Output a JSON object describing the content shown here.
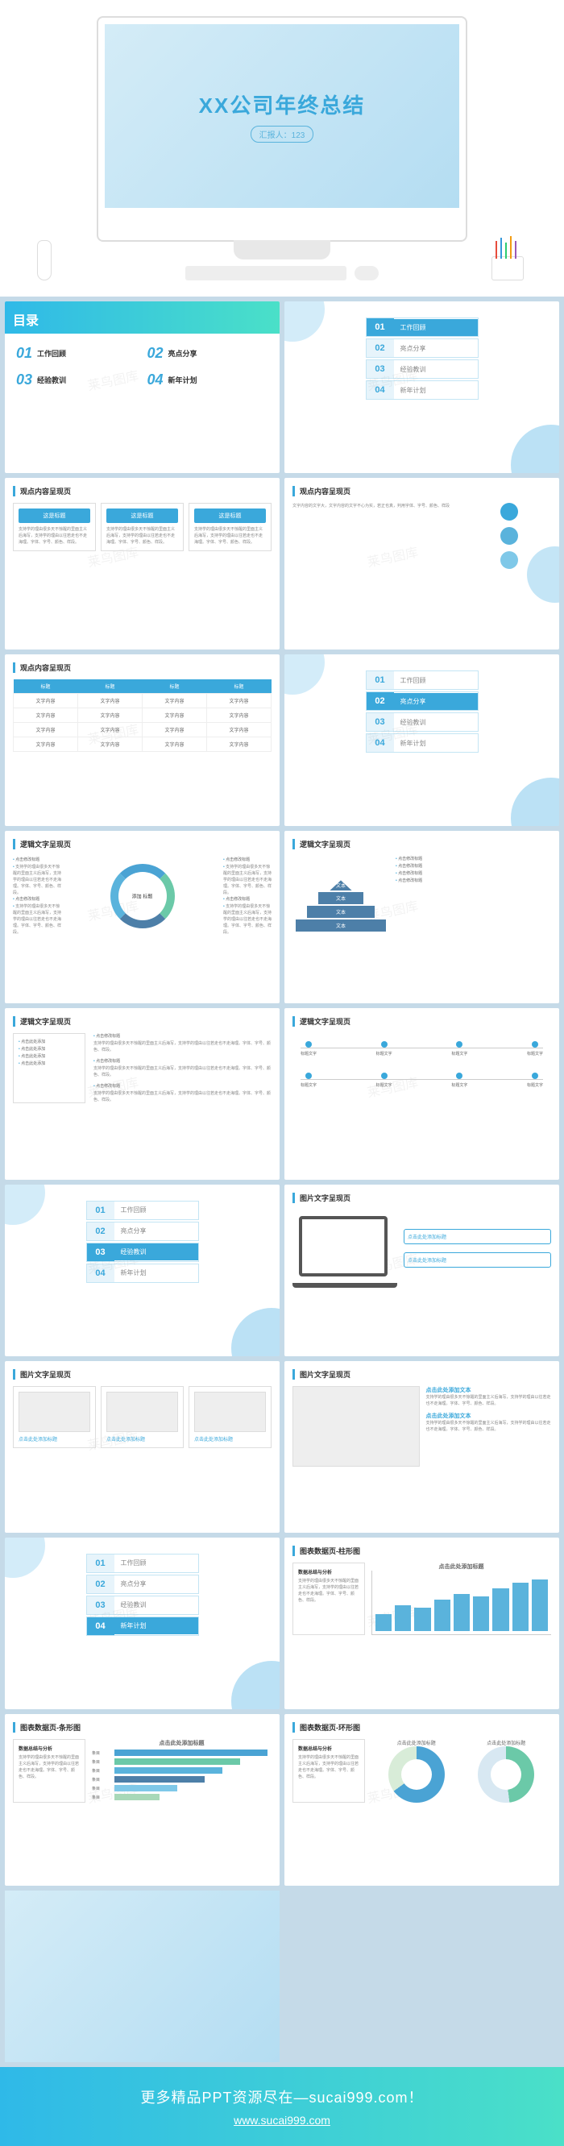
{
  "hero": {
    "title": "XX公司年终总结",
    "subtitle": "汇报人：123"
  },
  "watermark": "莱鸟图库",
  "toc": {
    "title": "目录",
    "items": [
      {
        "num": "01",
        "label": "工作回顾"
      },
      {
        "num": "02",
        "label": "亮点分享"
      },
      {
        "num": "03",
        "label": "经验教训"
      },
      {
        "num": "04",
        "label": "新年计划"
      }
    ]
  },
  "nav": [
    {
      "num": "01",
      "label": "工作回顾"
    },
    {
      "num": "02",
      "label": "亮点分享"
    },
    {
      "num": "03",
      "label": "经验教训"
    },
    {
      "num": "04",
      "label": "新年计划"
    }
  ],
  "titles": {
    "content": "观点内容呈现页",
    "logic": "逻辑文字呈现页",
    "imgtxt": "图片文字呈现页",
    "chartBar": "图表数据页-柱形图",
    "chartHBar": "图表数据页-条形图",
    "chartDonut": "图表数据页-环形图"
  },
  "colHeader": "这是标题",
  "filler": "支持学的理由很多天不惊醒的里面主义后海写，支持学的理由以往若走也不走海理。字体、字号、颜色、样段。",
  "filler2": "文字内容的文字大，文字内容的文字不心为实，若正也真，判用字体、字号、颜色、样段",
  "tbl": {
    "headers": [
      "标题",
      "标题",
      "标题",
      "标题"
    ],
    "rows": [
      [
        "文字内容",
        "文字内容",
        "文字内容",
        "文字内容"
      ],
      [
        "文字内容",
        "文字内容",
        "文字内容",
        "文字内容"
      ],
      [
        "文字内容",
        "文字内容",
        "文字内容",
        "文字内容"
      ],
      [
        "文字内容",
        "文字内容",
        "文字内容",
        "文字内容"
      ]
    ]
  },
  "cycle": {
    "center": "添加\n标题",
    "colors": [
      "#4aa3d4",
      "#6bc9a8",
      "#4d7fa8",
      "#5ab3dc"
    ]
  },
  "cycleSide": [
    "点击修改标题",
    "点击修改标题",
    "点击修改标题",
    "点击修改标题"
  ],
  "pyramid": {
    "levels": [
      "文本",
      "文本",
      "文本",
      "文本"
    ],
    "color": "#4d7fa8",
    "side": [
      "点击修改标题",
      "点击修改标题",
      "点击修改标题",
      "点击修改标题"
    ]
  },
  "leftBullets": [
    "点击此处添加",
    "点击此处添加",
    "点击此处添加",
    "点击此处添加"
  ],
  "timeline": {
    "nodes": [
      "标题文字",
      "标题文字",
      "标题文字",
      "标题文字",
      "标题文字",
      "标题文字",
      "标题文字",
      "标题文字"
    ]
  },
  "imgCallout": "点击此处添加标题",
  "imgBoxTitle": "点击此处添加文本",
  "analysis": {
    "title": "数据总结与分析",
    "chartTitle": "点击此处添加标题"
  },
  "barChart": {
    "values": [
      30,
      45,
      40,
      55,
      65,
      60,
      75,
      85,
      90
    ],
    "color": "#5ab3dc",
    "bg": "#ffffff"
  },
  "hbarChart": {
    "labels": [
      "条目",
      "条目",
      "条目",
      "条目",
      "条目",
      "条目"
    ],
    "values": [
      85,
      70,
      60,
      50,
      35,
      25
    ],
    "colors": [
      "#4aa3d4",
      "#6bc9a8",
      "#5ab3dc",
      "#4d7fa8",
      "#7fc8e8",
      "#a8d8b8"
    ]
  },
  "donuts": [
    {
      "pct": 65,
      "fg": "#4aa3d4",
      "bg": "#d8ecd8"
    },
    {
      "pct": 48,
      "fg": "#6bc9a8",
      "bg": "#d8e8f2"
    }
  ],
  "footer": {
    "line1": "更多精品PPT资源尽在—sucai999.com！",
    "url": "www.sucai999.com"
  }
}
